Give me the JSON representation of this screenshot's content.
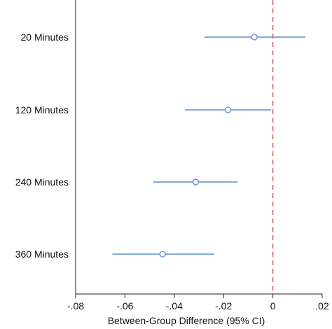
{
  "chart_data": {
    "type": "forest",
    "title": "",
    "xlabel": "Between-Group Difference (95% CI)",
    "ylabel": "",
    "xlim": [
      -0.08,
      0.02
    ],
    "xticks": [
      -0.08,
      -0.06,
      -0.04,
      -0.02,
      0,
      0.02
    ],
    "xtick_labels": [
      "-.08",
      "-.06",
      "-.04",
      "-.02",
      "0",
      ".02"
    ],
    "reference_line": {
      "x": 0,
      "style": "dashed",
      "color": "#d9534f"
    },
    "categories": [
      "20 Minutes",
      "120 Minutes",
      "240 Minutes",
      "360 Minutes"
    ],
    "estimates": [
      -0.0075,
      -0.0182,
      -0.0313,
      -0.0447
    ],
    "ci_lower": [
      -0.0278,
      -0.0357,
      -0.0485,
      -0.0651
    ],
    "ci_upper": [
      0.0132,
      -0.0008,
      -0.0143,
      -0.0238
    ],
    "grid": false,
    "legend": "none",
    "colors": {
      "series": "#5b8fc9",
      "axis": "#222222",
      "reference": "#d9534f"
    }
  }
}
